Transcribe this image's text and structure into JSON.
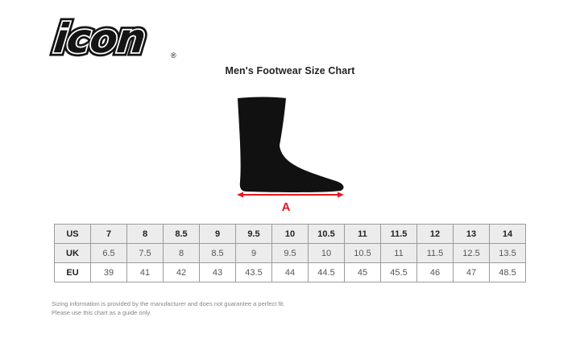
{
  "logo": {
    "text": "icon",
    "registered": "®"
  },
  "title": "Men's Footwear Size Chart",
  "diagram": {
    "label": "A",
    "arrow_color": "#e8191e",
    "foot_color": "#111111"
  },
  "chart_data": {
    "type": "table",
    "title": "Men's Footwear Size Chart",
    "rows": [
      {
        "label": "US",
        "values": [
          "7",
          "8",
          "8.5",
          "9",
          "9.5",
          "10",
          "10.5",
          "11",
          "11.5",
          "12",
          "13",
          "14"
        ]
      },
      {
        "label": "UK",
        "values": [
          "6.5",
          "7.5",
          "8",
          "8.5",
          "9",
          "9.5",
          "10",
          "10.5",
          "11",
          "11.5",
          "12.5",
          "13.5"
        ]
      },
      {
        "label": "EU",
        "values": [
          "39",
          "41",
          "42",
          "43",
          "43.5",
          "44",
          "44.5",
          "45",
          "45.5",
          "46",
          "47",
          "48.5"
        ]
      }
    ]
  },
  "theme": {
    "background": "#ffffff",
    "border_color": "#9b9b9b",
    "row_shaded_bg": "#ececec",
    "row_plain_bg": "#ffffff"
  },
  "footnote": {
    "line1": "Sizing information is provided by the manufacturer and does not guarantee a perfect fit.",
    "line2": "Please use this chart as a guide only."
  }
}
